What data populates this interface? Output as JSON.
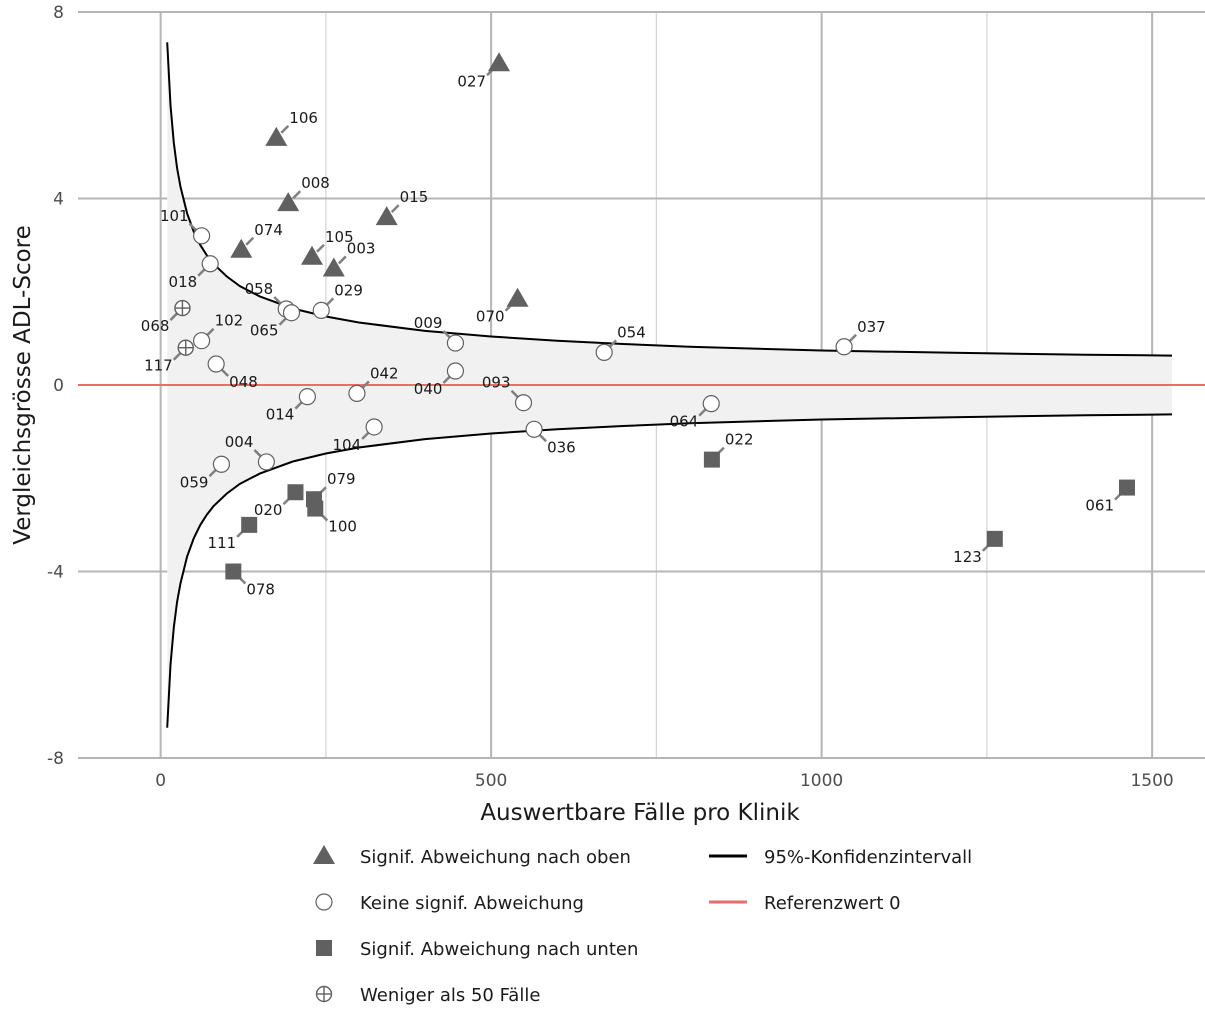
{
  "chart_data": {
    "type": "scatter",
    "xlabel": "Auswertbare Fälle pro Klinik",
    "ylabel": "Vergleichsgrösse ADL-Score",
    "xlim": [
      -125,
      1580
    ],
    "ylim": [
      -8,
      8
    ],
    "x_ticks": [
      0,
      500,
      1000,
      1500
    ],
    "x_tick_labels": [
      "0",
      "500",
      "1000",
      "1500"
    ],
    "y_ticks": [
      -8,
      -4,
      0,
      4,
      8
    ],
    "y_tick_labels": [
      "-8",
      "-4",
      "0",
      "4",
      "8"
    ],
    "grid": true,
    "legend_position": "bottom",
    "reference_value": 0,
    "confidence_band": {
      "description_label": "95%-Konfidenzintervall",
      "x": [
        10,
        15,
        20,
        25,
        30,
        40,
        50,
        60,
        70,
        80,
        100,
        120,
        150,
        200,
        250,
        300,
        400,
        500,
        600,
        700,
        800,
        1000,
        1200,
        1400,
        1530
      ],
      "upper": [
        7.35,
        6.0,
        5.2,
        4.65,
        4.25,
        3.68,
        3.29,
        3.0,
        2.78,
        2.6,
        2.33,
        2.12,
        1.9,
        1.64,
        1.47,
        1.34,
        1.16,
        1.04,
        0.95,
        0.88,
        0.82,
        0.74,
        0.69,
        0.65,
        0.63
      ],
      "lower": [
        -7.35,
        -6.0,
        -5.2,
        -4.65,
        -4.25,
        -3.68,
        -3.29,
        -3.0,
        -2.78,
        -2.6,
        -2.33,
        -2.12,
        -1.9,
        -1.64,
        -1.47,
        -1.34,
        -1.16,
        -1.04,
        -0.95,
        -0.88,
        -0.82,
        -0.74,
        -0.69,
        -0.65,
        -0.63
      ]
    },
    "series": [
      {
        "name": "Signif. Abweichung nach oben",
        "marker": "triangle",
        "color": "#606060",
        "points": [
          {
            "id": "027",
            "x": 512,
            "y": 6.9,
            "label_pos": "left-below"
          },
          {
            "id": "106",
            "x": 175,
            "y": 5.3,
            "label_pos": "right-above"
          },
          {
            "id": "008",
            "x": 193,
            "y": 3.9,
            "label_pos": "right-above"
          },
          {
            "id": "015",
            "x": 342,
            "y": 3.6,
            "label_pos": "right-above"
          },
          {
            "id": "074",
            "x": 122,
            "y": 2.9,
            "label_pos": "right-above"
          },
          {
            "id": "105",
            "x": 229,
            "y": 2.75,
            "label_pos": "right-above"
          },
          {
            "id": "003",
            "x": 262,
            "y": 2.5,
            "label_pos": "right-above"
          },
          {
            "id": "070",
            "x": 540,
            "y": 1.85,
            "label_pos": "left-below"
          }
        ]
      },
      {
        "name": "Keine signif. Abweichung",
        "marker": "circle-open",
        "color": "#ffffff",
        "points": [
          {
            "id": "101",
            "x": 62,
            "y": 3.2,
            "label_pos": "left-above"
          },
          {
            "id": "018",
            "x": 75,
            "y": 2.6,
            "label_pos": "left-below"
          },
          {
            "id": "058",
            "x": 190,
            "y": 1.63,
            "label_pos": "left-above"
          },
          {
            "id": "065",
            "x": 198,
            "y": 1.55,
            "label_pos": "left-below"
          },
          {
            "id": "029",
            "x": 243,
            "y": 1.6,
            "label_pos": "right-above"
          },
          {
            "id": "102",
            "x": 62,
            "y": 0.95,
            "label_pos": "right-above"
          },
          {
            "id": "048",
            "x": 84,
            "y": 0.45,
            "label_pos": "right-below"
          },
          {
            "id": "009",
            "x": 446,
            "y": 0.9,
            "label_pos": "left-above"
          },
          {
            "id": "040",
            "x": 446,
            "y": 0.3,
            "label_pos": "left-below"
          },
          {
            "id": "054",
            "x": 671,
            "y": 0.7,
            "label_pos": "right-above"
          },
          {
            "id": "037",
            "x": 1034,
            "y": 0.82,
            "label_pos": "right-above"
          },
          {
            "id": "014",
            "x": 222,
            "y": -0.25,
            "label_pos": "left-below"
          },
          {
            "id": "042",
            "x": 297,
            "y": -0.18,
            "label_pos": "right-above"
          },
          {
            "id": "093",
            "x": 549,
            "y": -0.38,
            "label_pos": "left-above"
          },
          {
            "id": "036",
            "x": 565,
            "y": -0.95,
            "label_pos": "right-below"
          },
          {
            "id": "064",
            "x": 833,
            "y": -0.4,
            "label_pos": "left-below"
          },
          {
            "id": "104",
            "x": 323,
            "y": -0.9,
            "label_pos": "left-below"
          },
          {
            "id": "004",
            "x": 160,
            "y": -1.65,
            "label_pos": "left-above"
          },
          {
            "id": "059",
            "x": 92,
            "y": -1.7,
            "label_pos": "left-below"
          }
        ]
      },
      {
        "name": "Signif. Abweichung nach unten",
        "marker": "square",
        "color": "#606060",
        "points": [
          {
            "id": "022",
            "x": 834,
            "y": -1.6,
            "label_pos": "right-above"
          },
          {
            "id": "020",
            "x": 204,
            "y": -2.3,
            "label_pos": "left-below"
          },
          {
            "id": "079",
            "x": 232,
            "y": -2.45,
            "label_pos": "right-above"
          },
          {
            "id": "100",
            "x": 234,
            "y": -2.65,
            "label_pos": "right-below"
          },
          {
            "id": "111",
            "x": 134,
            "y": -3.0,
            "label_pos": "left-below"
          },
          {
            "id": "078",
            "x": 110,
            "y": -4.0,
            "label_pos": "right-below"
          },
          {
            "id": "123",
            "x": 1262,
            "y": -3.3,
            "label_pos": "left-below"
          },
          {
            "id": "061",
            "x": 1462,
            "y": -2.2,
            "label_pos": "left-below"
          }
        ]
      },
      {
        "name": "Weniger als 50 Fälle",
        "marker": "circle-plus",
        "color": "#ffffff",
        "points": [
          {
            "id": "068",
            "x": 33,
            "y": 1.65,
            "label_pos": "left-below"
          },
          {
            "id": "117",
            "x": 38,
            "y": 0.8,
            "label_pos": "left-below"
          }
        ]
      }
    ],
    "reference_lines": [
      {
        "name": "95%-Konfidenzintervall",
        "color": "#000000"
      },
      {
        "name": "Referenzwert 0",
        "color": "#ec6b6b"
      }
    ]
  }
}
